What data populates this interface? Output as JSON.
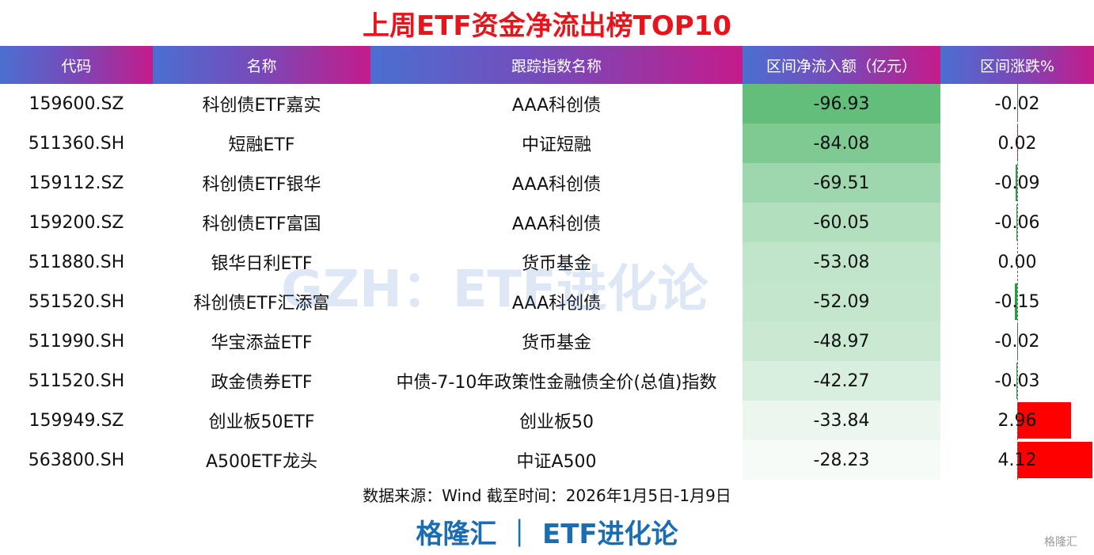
{
  "title": "上周ETF资金净流出榜TOP10",
  "columns": [
    "代码",
    "名称",
    "跟踪指数名称",
    "区间净流入额（亿元）",
    "区间涨跌%"
  ],
  "rows": [
    {
      "code": "159600.SZ",
      "name": "科创债ETF嘉实",
      "index": "AAA科创债",
      "flow": -96.93,
      "change": -0.02
    },
    {
      "code": "511360.SH",
      "name": "短融ETF",
      "index": "中证短融",
      "flow": -84.08,
      "change": 0.02
    },
    {
      "code": "159112.SZ",
      "name": "科创债ETF银华",
      "index": "AAA科创债",
      "flow": -69.51,
      "change": -0.09
    },
    {
      "code": "159200.SZ",
      "name": "科创债ETF富国",
      "index": "AAA科创债",
      "flow": -60.05,
      "change": -0.06
    },
    {
      "code": "511880.SH",
      "name": "银华日利ETF",
      "index": "货币基金",
      "flow": -53.08,
      "change": {
        "value": 0,
        "label": "0.00"
      }
    },
    {
      "code": "551520.SH",
      "name": "科创债ETF汇添富",
      "index": "AAA科创债",
      "flow": -52.09,
      "change": -0.15
    },
    {
      "code": "511990.SH",
      "name": "华宝添益ETF",
      "index": "货币基金",
      "flow": -48.97,
      "change": -0.02
    },
    {
      "code": "511520.SH",
      "name": "政金债券ETF",
      "index": "中债-7-10年政策性金融债全价(总值)指数",
      "flow": -42.27,
      "change": -0.03
    },
    {
      "code": "159949.SZ",
      "name": "创业板50ETF",
      "index": "创业板50",
      "flow": -33.84,
      "change": 2.96
    },
    {
      "code": "563800.SH",
      "name": "A500ETF龙头",
      "index": "中证A500",
      "flow": -28.23,
      "change": 4.12
    }
  ],
  "watermark": "GZH：ETF进化论",
  "source": "数据来源：Wind 截至时间：2026年1月5日-1月9日",
  "brand": "格隆汇 ｜ ETF进化论",
  "logo": "格隆汇"
}
